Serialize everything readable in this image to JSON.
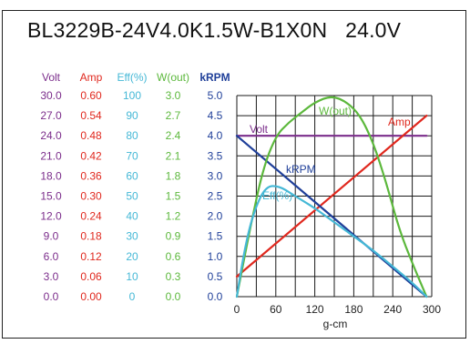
{
  "chart_data": {
    "type": "line",
    "title": "BL3229B-24V4.0K1.5W-B1X0N   24.0V",
    "xlabel": "g-cm",
    "xlim": [
      0,
      300
    ],
    "x_ticks": [
      0,
      60,
      120,
      180,
      240,
      300
    ],
    "grid": true,
    "y_axes": [
      {
        "name": "Volt",
        "color": "#7b2d8b",
        "ticks": [
          "30.0",
          "27.0",
          "24.0",
          "21.0",
          "18.0",
          "15.0",
          "12.0",
          "9.0",
          "6.0",
          "3.0",
          "0.0"
        ]
      },
      {
        "name": "Amp",
        "color": "#e0281e",
        "ticks": [
          "0.60",
          "0.54",
          "0.48",
          "0.42",
          "0.36",
          "0.30",
          "0.24",
          "0.18",
          "0.12",
          "0.06",
          "0.00"
        ]
      },
      {
        "name": "Eff(%)",
        "color": "#45b8d6",
        "ticks": [
          "100",
          "90",
          "80",
          "70",
          "60",
          "50",
          "40",
          "30",
          "20",
          "10",
          "0"
        ]
      },
      {
        "name": "W(out)",
        "color": "#5cb83c",
        "ticks": [
          "3.0",
          "2.7",
          "2.4",
          "2.1",
          "1.8",
          "1.5",
          "1.2",
          "0.9",
          "0.6",
          "0.3",
          "0.0"
        ]
      },
      {
        "name": "kRPM",
        "color": "#1f3f99",
        "ticks": [
          "5.0",
          "4.5",
          "4.0",
          "3.5",
          "3.0",
          "2.5",
          "2.0",
          "1.5",
          "1.0",
          "0.5",
          "0.0"
        ]
      }
    ],
    "series": [
      {
        "name": "Volt",
        "label": "Volt",
        "color": "#7b2d8b",
        "unit_max": 30,
        "x": [
          0,
          292
        ],
        "y": [
          24.0,
          24.0
        ]
      },
      {
        "name": "Amp",
        "label": "Amp",
        "color": "#e0281e",
        "unit_max": 0.6,
        "x": [
          0,
          292
        ],
        "y": [
          0.06,
          0.54
        ]
      },
      {
        "name": "kRPM",
        "label": "kRPM",
        "color": "#1f3f99",
        "unit_max": 5,
        "x": [
          0,
          292
        ],
        "y": [
          4.0,
          0.0
        ]
      },
      {
        "name": "W(out)",
        "label": "W(out)",
        "color": "#5cb83c",
        "unit_max": 3,
        "x": [
          0,
          20,
          40,
          60,
          80,
          100,
          120,
          146,
          170,
          190,
          210,
          230,
          250,
          270,
          292
        ],
        "y": [
          0.0,
          1.0,
          1.9,
          2.4,
          2.6,
          2.75,
          2.9,
          3.0,
          2.9,
          2.7,
          2.3,
          1.7,
          1.0,
          0.5,
          0.0
        ]
      },
      {
        "name": "Eff(%)",
        "label": "Eff(%)",
        "color": "#45b8d6",
        "unit_max": 100,
        "x": [
          0,
          10,
          20,
          30,
          40,
          50,
          60,
          70,
          80,
          100,
          120,
          150,
          180,
          210,
          240,
          270,
          292
        ],
        "y": [
          0,
          20,
          35,
          45,
          52,
          55,
          55,
          54,
          52,
          48,
          44,
          37,
          30,
          23,
          15,
          7,
          0
        ]
      }
    ]
  }
}
